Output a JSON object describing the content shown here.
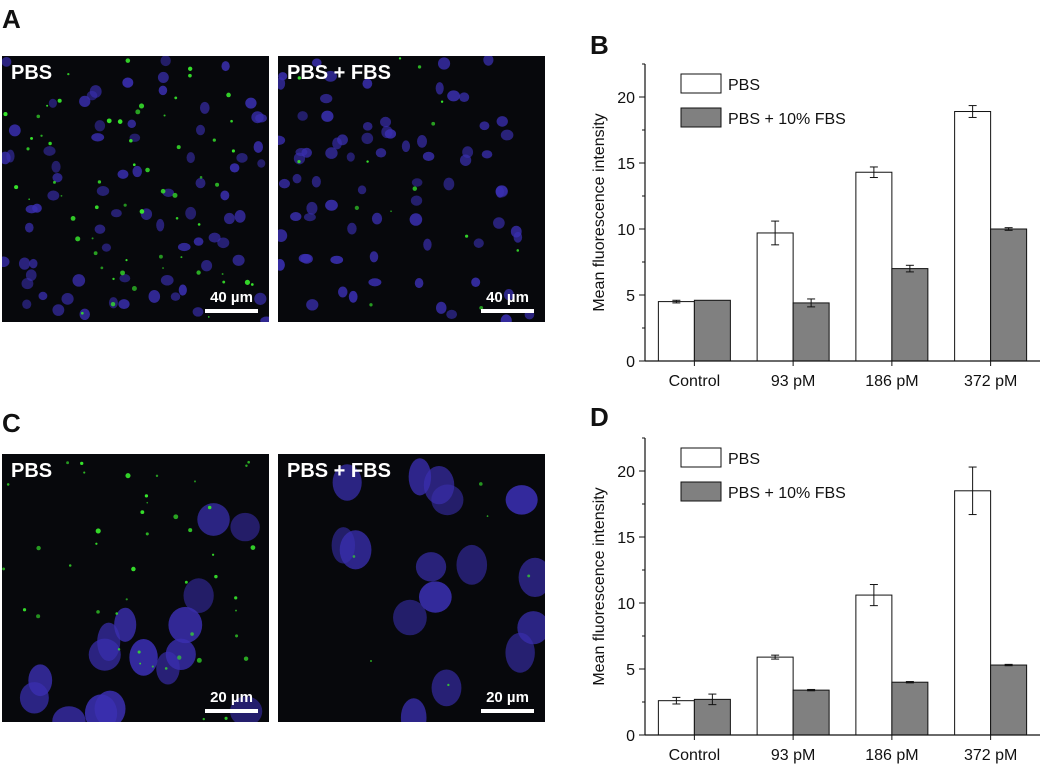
{
  "panels": {
    "A": {
      "letter": "A",
      "left_label": "PBS",
      "right_label": "PBS + FBS",
      "left_scale": "40 µm",
      "right_scale": "40 µm"
    },
    "B": {
      "letter": "B"
    },
    "C": {
      "letter": "C",
      "left_label": "PBS",
      "right_label": "PBS + FBS",
      "left_scale": "20 µm",
      "right_scale": "20 µm"
    },
    "D": {
      "letter": "D"
    }
  },
  "colors": {
    "pbs_fill": "#ffffff",
    "fbs_fill": "#808080",
    "nucleus": "#3a2fb0",
    "spot": "#37e62c"
  },
  "chart_data": [
    {
      "panel": "B",
      "type": "bar",
      "categories": [
        "Control",
        "93 pM",
        "186 pM",
        "372 pM"
      ],
      "ylabel": "Mean fluorescence intensity",
      "xlabel": "",
      "ylim": [
        0,
        22.5
      ],
      "yticks": [
        0,
        5,
        10,
        15,
        20
      ],
      "legend_position": "top-left",
      "series": [
        {
          "name": "PBS",
          "values": [
            4.5,
            9.7,
            14.3,
            18.9
          ],
          "errors": [
            0.1,
            0.9,
            0.4,
            0.45
          ]
        },
        {
          "name": "PBS + 10% FBS",
          "values": [
            4.6,
            4.4,
            7.0,
            10.0
          ],
          "errors": [
            0.0,
            0.3,
            0.25,
            0.1
          ]
        }
      ]
    },
    {
      "panel": "D",
      "type": "bar",
      "categories": [
        "Control",
        "93 pM",
        "186 pM",
        "372 pM"
      ],
      "ylabel": "Mean fluorescence intensity",
      "xlabel": "",
      "ylim": [
        0,
        22.5
      ],
      "yticks": [
        0,
        5,
        10,
        15,
        20
      ],
      "legend_position": "top-left",
      "series": [
        {
          "name": "PBS",
          "values": [
            2.6,
            5.9,
            10.6,
            18.5
          ],
          "errors": [
            0.25,
            0.15,
            0.8,
            1.8
          ]
        },
        {
          "name": "PBS + 10% FBS",
          "values": [
            2.7,
            3.4,
            4.0,
            5.3
          ],
          "errors": [
            0.4,
            0.05,
            0.05,
            0.05
          ]
        }
      ]
    }
  ]
}
